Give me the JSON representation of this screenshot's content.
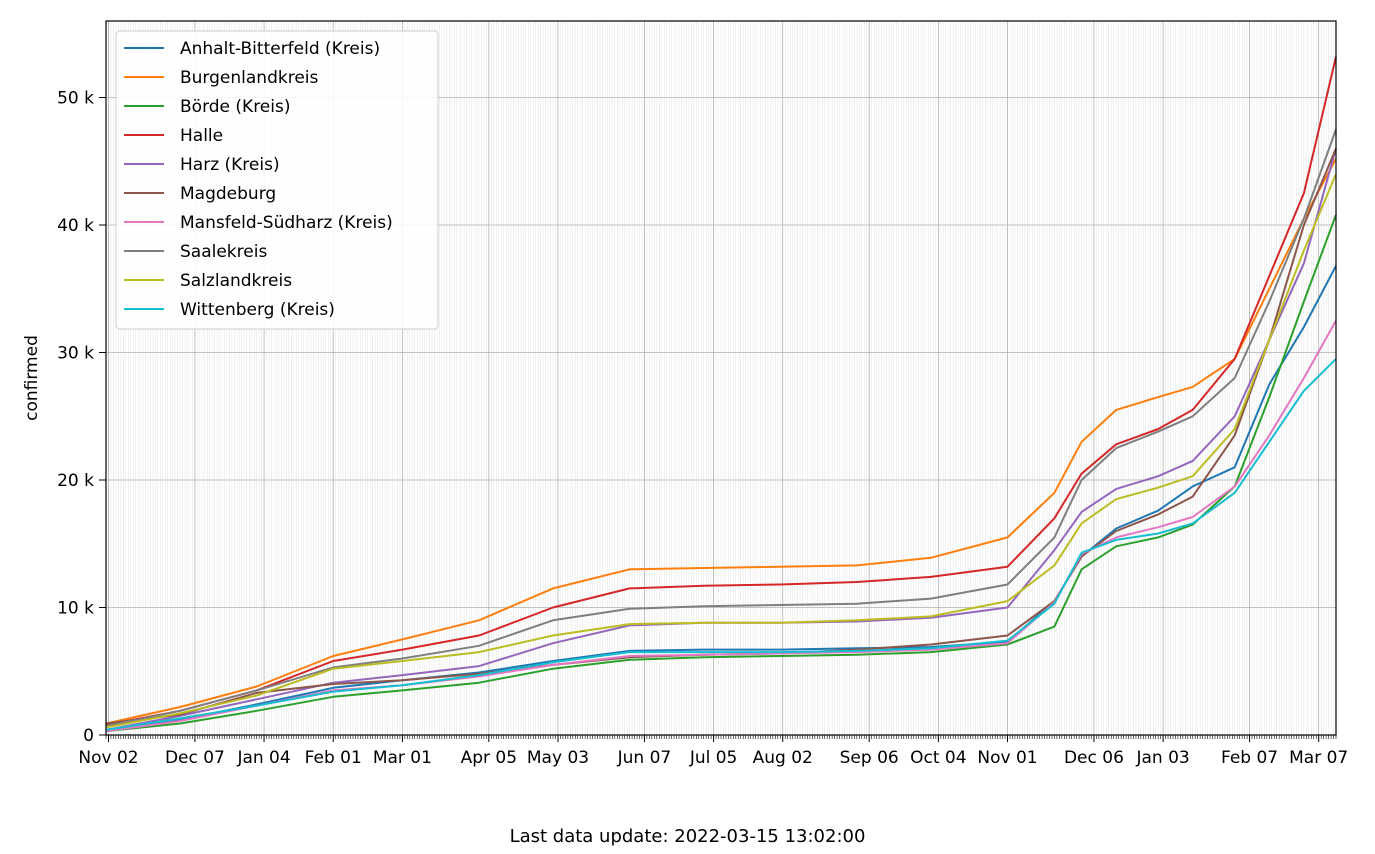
{
  "chart_data": {
    "type": "line",
    "ylabel": "confirmed",
    "ylim": [
      0,
      56000
    ],
    "xlim": [
      "2020-11-01",
      "2022-03-14"
    ],
    "y_ticks": [
      {
        "value": 0,
        "label": "0"
      },
      {
        "value": 10000,
        "label": "10 k"
      },
      {
        "value": 20000,
        "label": "20 k"
      },
      {
        "value": 30000,
        "label": "30 k"
      },
      {
        "value": 40000,
        "label": "40 k"
      },
      {
        "value": 50000,
        "label": "50 k"
      }
    ],
    "x_ticks": [
      {
        "date": "2020-11-02",
        "label": "Nov 02"
      },
      {
        "date": "2020-12-07",
        "label": "Dec 07"
      },
      {
        "date": "2021-01-04",
        "label": "Jan 04"
      },
      {
        "date": "2021-02-01",
        "label": "Feb 01"
      },
      {
        "date": "2021-03-01",
        "label": "Mar 01"
      },
      {
        "date": "2021-04-05",
        "label": "Apr 05"
      },
      {
        "date": "2021-05-03",
        "label": "May 03"
      },
      {
        "date": "2021-06-07",
        "label": "Jun 07"
      },
      {
        "date": "2021-07-05",
        "label": "Jul 05"
      },
      {
        "date": "2021-08-02",
        "label": "Aug 02"
      },
      {
        "date": "2021-09-06",
        "label": "Sep 06"
      },
      {
        "date": "2021-10-04",
        "label": "Oct 04"
      },
      {
        "date": "2021-11-01",
        "label": "Nov 01"
      },
      {
        "date": "2021-12-06",
        "label": "Dec 06"
      },
      {
        "date": "2022-01-03",
        "label": "Jan 03"
      },
      {
        "date": "2022-02-07",
        "label": "Feb 07"
      },
      {
        "date": "2022-03-07",
        "label": "Mar 07"
      }
    ],
    "grid": true,
    "legend_position": "top-left",
    "x": [
      "2020-11-01",
      "2020-12-01",
      "2021-01-01",
      "2021-02-01",
      "2021-03-01",
      "2021-04-01",
      "2021-05-01",
      "2021-06-01",
      "2021-07-01",
      "2021-08-01",
      "2021-09-01",
      "2021-10-01",
      "2021-11-01",
      "2021-11-20",
      "2021-12-01",
      "2021-12-15",
      "2022-01-01",
      "2022-01-15",
      "2022-02-01",
      "2022-02-15",
      "2022-03-01",
      "2022-03-14"
    ],
    "series": [
      {
        "name": "Anhalt-Bitterfeld (Kreis)",
        "color": "#1f77b4",
        "values": [
          400,
          1200,
          2400,
          3700,
          4300,
          4900,
          5800,
          6600,
          6700,
          6700,
          6800,
          6900,
          7300,
          10500,
          14000,
          16200,
          17600,
          19500,
          21000,
          27500,
          32000,
          36800
        ]
      },
      {
        "name": "Burgenlandkreis",
        "color": "#ff7f0e",
        "values": [
          900,
          2200,
          3800,
          6200,
          7500,
          9000,
          11500,
          13000,
          13100,
          13200,
          13300,
          13900,
          15500,
          19000,
          23000,
          25500,
          26500,
          27300,
          29500,
          35000,
          40500,
          45200
        ]
      },
      {
        "name": "Börde (Kreis)",
        "color": "#2ca02c",
        "values": [
          300,
          900,
          1900,
          3000,
          3500,
          4100,
          5200,
          5900,
          6100,
          6200,
          6300,
          6500,
          7100,
          8500,
          13000,
          14800,
          15500,
          16500,
          19500,
          26500,
          34000,
          40800
        ]
      },
      {
        "name": "Halle",
        "color": "#d62728",
        "values": [
          800,
          1900,
          3500,
          5800,
          6700,
          7800,
          10000,
          11500,
          11700,
          11800,
          12000,
          12400,
          13200,
          17000,
          20500,
          22800,
          24000,
          25500,
          29500,
          36000,
          42500,
          53200
        ]
      },
      {
        "name": "Harz (Kreis)",
        "color": "#9467bd",
        "values": [
          400,
          1500,
          2800,
          4100,
          4700,
          5400,
          7200,
          8600,
          8800,
          8800,
          8900,
          9200,
          10000,
          14500,
          17500,
          19300,
          20300,
          21500,
          25000,
          31000,
          37000,
          46000
        ]
      },
      {
        "name": "Magdeburg",
        "color": "#8c564b",
        "values": [
          900,
          1600,
          3300,
          4000,
          4300,
          4800,
          5500,
          6100,
          6300,
          6400,
          6700,
          7100,
          7800,
          10500,
          14000,
          16000,
          17300,
          18700,
          23500,
          31000,
          40000,
          46000
        ]
      },
      {
        "name": "Mansfeld-Südharz (Kreis)",
        "color": "#e377c2",
        "values": [
          300,
          1100,
          2300,
          3500,
          3900,
          4600,
          5500,
          6200,
          6300,
          6400,
          6500,
          6700,
          7200,
          10400,
          14200,
          15500,
          16300,
          17100,
          19500,
          23500,
          28000,
          32500
        ]
      },
      {
        "name": "Saalekreis",
        "color": "#7f7f7f",
        "values": [
          700,
          1900,
          3500,
          5300,
          6000,
          7000,
          9000,
          9900,
          10100,
          10200,
          10300,
          10700,
          11800,
          15500,
          20000,
          22500,
          23800,
          25000,
          28000,
          34000,
          40500,
          47500
        ]
      },
      {
        "name": "Salzlandkreis",
        "color": "#bcbd22",
        "values": [
          600,
          1700,
          3100,
          5200,
          5800,
          6500,
          7800,
          8700,
          8800,
          8800,
          9000,
          9300,
          10500,
          13300,
          16600,
          18500,
          19400,
          20300,
          24000,
          31000,
          38000,
          44000
        ]
      },
      {
        "name": "Wittenberg (Kreis)",
        "color": "#17becf",
        "values": [
          400,
          1300,
          2300,
          3400,
          3900,
          4700,
          5700,
          6500,
          6500,
          6500,
          6600,
          6800,
          7400,
          10300,
          14300,
          15300,
          15800,
          16600,
          19000,
          23000,
          27000,
          29500
        ]
      }
    ]
  },
  "footer": {
    "text": "Last data update: 2022-03-15 13:02:00"
  }
}
